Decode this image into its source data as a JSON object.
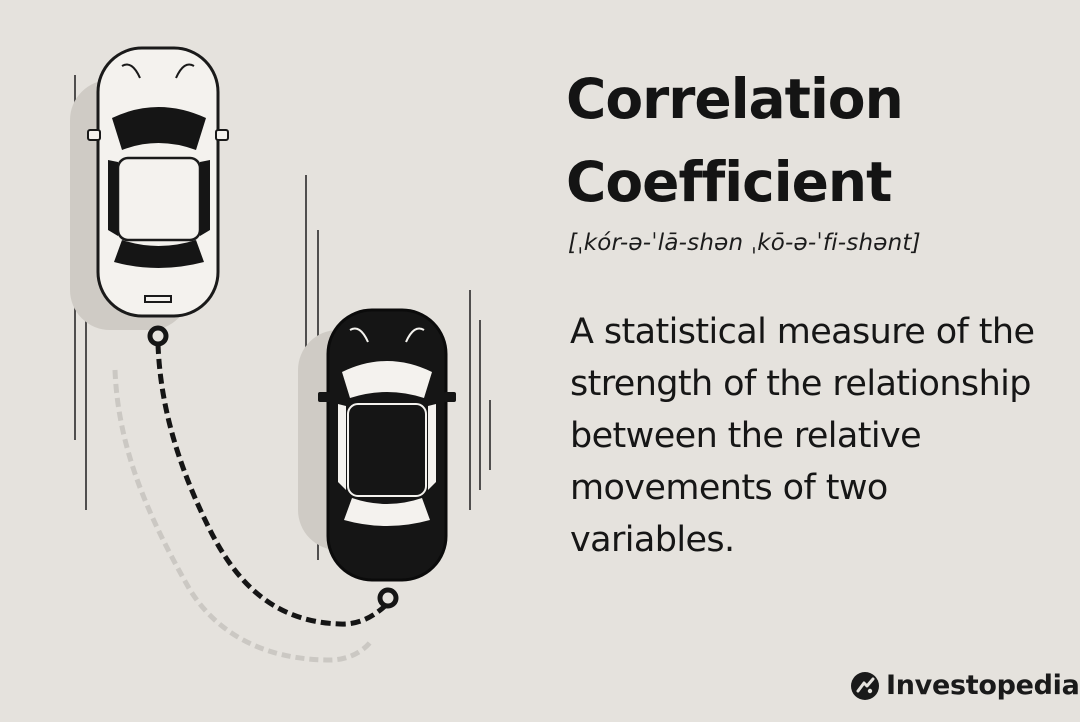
{
  "title_lines": [
    "Correlation",
    "Coefficient"
  ],
  "pronunciation": "[ˌkór-ə-ˈlā-shən ˌkō-ə-ˈfi-shənt]",
  "definition": "A statistical measure of the strength of the relationship between the relative movements of two variables.",
  "brand": {
    "name": "Investopedia",
    "icon": "investopedia-logo-icon"
  },
  "colors": {
    "background": "#e5e2dd",
    "ink": "#141414",
    "white_car": "#f4f2ee",
    "black_car": "#151515",
    "ghost_chain": "#c9c6c1"
  },
  "illustration": {
    "subject": "white-car-chained-to-black-car",
    "icons": [
      "white-car-icon",
      "black-car-icon",
      "chain-icon"
    ]
  }
}
